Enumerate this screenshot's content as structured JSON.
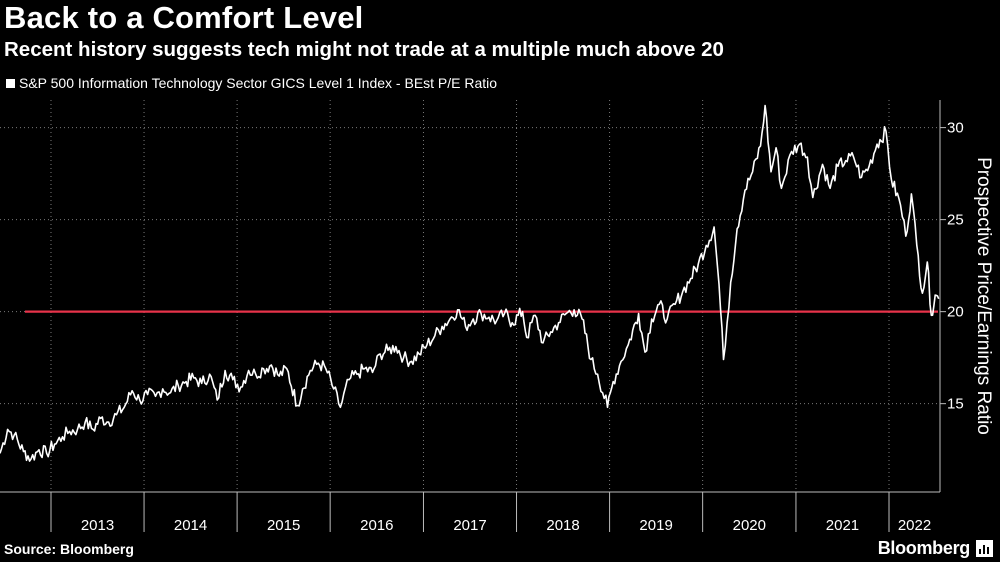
{
  "title": "Back to a Comfort Level",
  "subtitle": "Recent history suggests tech might not trade at a multiple much above 20",
  "footer": {
    "source": "Source: Bloomberg",
    "brand": "Bloomberg"
  },
  "chart_data": {
    "type": "line",
    "ylabel": "Prospective Price/Earnings Ratio",
    "ylim": [
      10.2,
      31.5
    ],
    "xlim": [
      "2012-06-15",
      "2022-07-20"
    ],
    "yticks": [
      15,
      20,
      25,
      30
    ],
    "xtick_labels": [
      "2013",
      "2014",
      "2015",
      "2016",
      "2017",
      "2018",
      "2019",
      "2020",
      "2021",
      "2022"
    ],
    "grid": true,
    "colors": {
      "series": "#ffffff",
      "reference": "#e8334a",
      "grid": "#7a7a7a",
      "axis": "#bbbbbb"
    },
    "reference_line": {
      "y": 20
    },
    "series": [
      {
        "name": "S&P 500 Information Technology Sector GICS Level 1 Index - BEst P/E Ratio",
        "points": [
          [
            "2012-06-15",
            12.3
          ],
          [
            "2012-07-15",
            13.6
          ],
          [
            "2012-08-10",
            13.3
          ],
          [
            "2012-09-15",
            12.4
          ],
          [
            "2012-10-15",
            12.0
          ],
          [
            "2012-11-15",
            12.5
          ],
          [
            "2012-12-15",
            12.3
          ],
          [
            "2013-01-15",
            12.8
          ],
          [
            "2013-02-15",
            13.2
          ],
          [
            "2013-03-15",
            13.5
          ],
          [
            "2013-04-15",
            13.6
          ],
          [
            "2013-05-15",
            14.0
          ],
          [
            "2013-06-15",
            13.6
          ],
          [
            "2013-07-15",
            14.2
          ],
          [
            "2013-08-15",
            14.0
          ],
          [
            "2013-09-15",
            14.4
          ],
          [
            "2013-10-15",
            14.8
          ],
          [
            "2013-11-15",
            15.7
          ],
          [
            "2013-12-15",
            15.2
          ],
          [
            "2014-01-15",
            15.5
          ],
          [
            "2014-02-15",
            15.4
          ],
          [
            "2014-03-15",
            15.8
          ],
          [
            "2014-04-15",
            15.6
          ],
          [
            "2014-05-15",
            16.0
          ],
          [
            "2014-06-15",
            16.2
          ],
          [
            "2014-07-15",
            16.4
          ],
          [
            "2014-08-15",
            16.1
          ],
          [
            "2014-09-15",
            16.6
          ],
          [
            "2014-10-15",
            15.2
          ],
          [
            "2014-11-15",
            16.8
          ],
          [
            "2014-12-15",
            16.3
          ],
          [
            "2015-01-15",
            15.9
          ],
          [
            "2015-02-15",
            16.8
          ],
          [
            "2015-03-15",
            16.6
          ],
          [
            "2015-04-15",
            16.9
          ],
          [
            "2015-05-15",
            17.1
          ],
          [
            "2015-06-15",
            16.5
          ],
          [
            "2015-07-15",
            16.9
          ],
          [
            "2015-08-25",
            14.9
          ],
          [
            "2015-09-15",
            15.8
          ],
          [
            "2015-10-15",
            16.8
          ],
          [
            "2015-11-15",
            17.2
          ],
          [
            "2015-12-15",
            16.9
          ],
          [
            "2016-01-15",
            15.8
          ],
          [
            "2016-02-10",
            14.8
          ],
          [
            "2016-03-15",
            16.3
          ],
          [
            "2016-04-15",
            16.6
          ],
          [
            "2016-05-15",
            16.9
          ],
          [
            "2016-06-15",
            16.7
          ],
          [
            "2016-07-15",
            17.7
          ],
          [
            "2016-08-15",
            17.9
          ],
          [
            "2016-09-15",
            18.1
          ],
          [
            "2016-10-15",
            17.5
          ],
          [
            "2016-11-15",
            17.3
          ],
          [
            "2016-12-15",
            17.7
          ],
          [
            "2017-01-15",
            18.2
          ],
          [
            "2017-02-15",
            18.7
          ],
          [
            "2017-03-15",
            19.2
          ],
          [
            "2017-04-15",
            19.6
          ],
          [
            "2017-05-15",
            20.1
          ],
          [
            "2017-06-15",
            19.2
          ],
          [
            "2017-07-15",
            19.6
          ],
          [
            "2017-08-15",
            19.9
          ],
          [
            "2017-09-15",
            19.7
          ],
          [
            "2017-10-15",
            19.5
          ],
          [
            "2017-11-15",
            19.9
          ],
          [
            "2017-12-15",
            19.4
          ],
          [
            "2018-01-25",
            20.0
          ],
          [
            "2018-02-10",
            18.6
          ],
          [
            "2018-03-15",
            19.8
          ],
          [
            "2018-04-15",
            18.3
          ],
          [
            "2018-05-15",
            18.9
          ],
          [
            "2018-06-15",
            19.4
          ],
          [
            "2018-07-15",
            19.9
          ],
          [
            "2018-08-15",
            20.1
          ],
          [
            "2018-09-15",
            19.6
          ],
          [
            "2018-10-20",
            17.4
          ],
          [
            "2018-11-15",
            16.6
          ],
          [
            "2018-12-24",
            14.8
          ],
          [
            "2019-01-15",
            16.2
          ],
          [
            "2019-02-15",
            17.3
          ],
          [
            "2019-03-15",
            18.2
          ],
          [
            "2019-04-25",
            19.9
          ],
          [
            "2019-05-20",
            17.8
          ],
          [
            "2019-06-15",
            19.6
          ],
          [
            "2019-07-15",
            20.4
          ],
          [
            "2019-08-15",
            19.6
          ],
          [
            "2019-09-15",
            20.4
          ],
          [
            "2019-10-15",
            21.1
          ],
          [
            "2019-11-15",
            21.8
          ],
          [
            "2019-12-15",
            22.6
          ],
          [
            "2020-01-15",
            23.6
          ],
          [
            "2020-02-15",
            24.6
          ],
          [
            "2020-03-05",
            21.5
          ],
          [
            "2020-03-23",
            17.4
          ],
          [
            "2020-04-20",
            21.6
          ],
          [
            "2020-05-15",
            24.5
          ],
          [
            "2020-06-15",
            26.6
          ],
          [
            "2020-07-15",
            27.6
          ],
          [
            "2020-08-15",
            29.0
          ],
          [
            "2020-09-02",
            31.2
          ],
          [
            "2020-09-25",
            27.6
          ],
          [
            "2020-10-15",
            28.9
          ],
          [
            "2020-11-05",
            26.7
          ],
          [
            "2020-12-15",
            28.7
          ],
          [
            "2021-01-15",
            29.1
          ],
          [
            "2021-02-15",
            28.4
          ],
          [
            "2021-03-08",
            26.2
          ],
          [
            "2021-04-15",
            28.0
          ],
          [
            "2021-05-15",
            26.7
          ],
          [
            "2021-06-15",
            27.9
          ],
          [
            "2021-07-15",
            28.2
          ],
          [
            "2021-08-15",
            28.4
          ],
          [
            "2021-09-15",
            27.3
          ],
          [
            "2021-10-15",
            27.9
          ],
          [
            "2021-11-15",
            29.1
          ],
          [
            "2021-12-20",
            29.8
          ],
          [
            "2022-01-10",
            27.2
          ],
          [
            "2022-02-15",
            25.8
          ],
          [
            "2022-03-08",
            24.1
          ],
          [
            "2022-03-30",
            26.4
          ],
          [
            "2022-04-20",
            23.6
          ],
          [
            "2022-05-12",
            21.0
          ],
          [
            "2022-05-31",
            22.7
          ],
          [
            "2022-06-16",
            19.8
          ],
          [
            "2022-07-01",
            20.9
          ],
          [
            "2022-07-15",
            20.7
          ]
        ]
      }
    ]
  }
}
